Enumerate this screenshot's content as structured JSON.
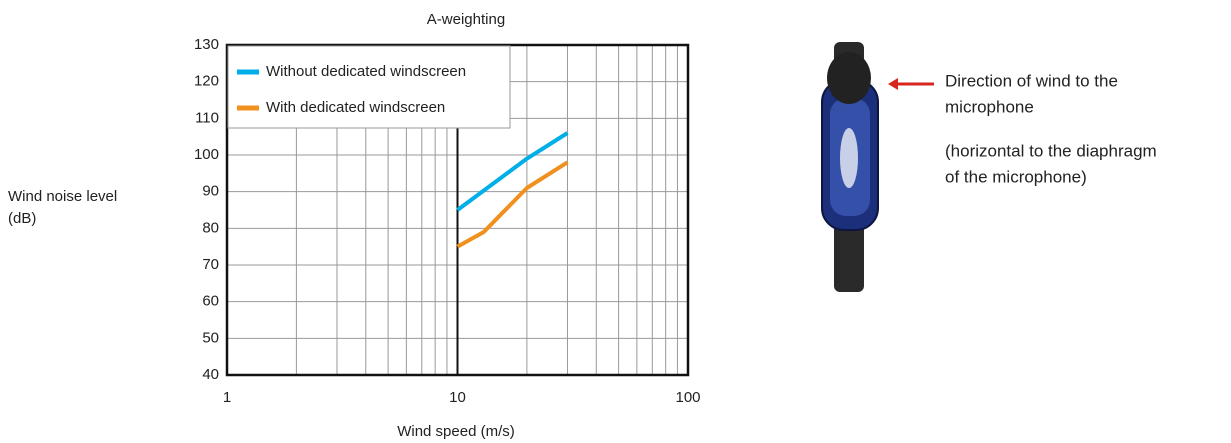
{
  "chart_data": {
    "type": "line",
    "title": "A-weighting",
    "xlabel": "Wind speed (m/s)",
    "ylabel": [
      "Wind noise level",
      "(dB)"
    ],
    "log_x": true,
    "xlim": [
      1,
      100
    ],
    "xticks": [
      1,
      10,
      100
    ],
    "x_minor_grid": [
      2,
      3,
      4,
      5,
      6,
      7,
      8,
      9,
      20,
      30,
      40,
      50,
      60,
      70,
      80,
      90
    ],
    "ylim": [
      40,
      130
    ],
    "yticks": [
      40,
      50,
      60,
      70,
      80,
      90,
      100,
      110,
      120,
      130
    ],
    "grid": true,
    "legend": "upper left",
    "series": [
      {
        "name": "Without dedicated windscreen",
        "color": "#00aee8",
        "x": [
          10,
          20,
          30
        ],
        "values": [
          85,
          99,
          106
        ]
      },
      {
        "name": "With dedicated windscreen",
        "color": "#f0901e",
        "x": [
          10,
          13,
          15,
          20,
          30
        ],
        "values": [
          75,
          79,
          83,
          91,
          98
        ]
      }
    ]
  },
  "annotation": {
    "lines": [
      "Direction of wind to the",
      "microphone",
      "(horizontal to the diaphragm",
      "of the microphone)"
    ]
  }
}
